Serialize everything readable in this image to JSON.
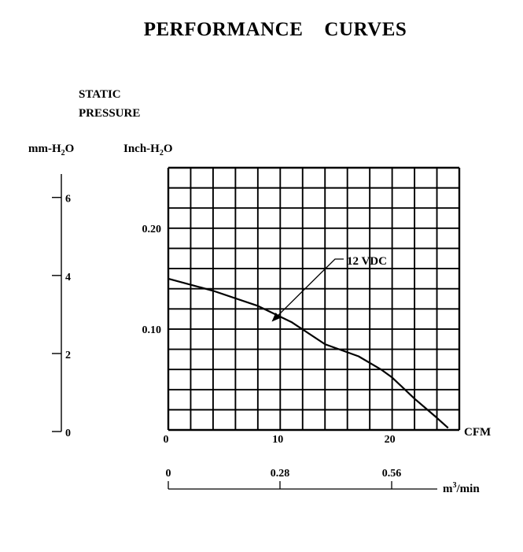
{
  "chart_data": {
    "type": "line",
    "title": "PERFORMANCE    CURVES",
    "ylabel_line1": "STATIC",
    "ylabel_line2": "PRESSURE",
    "y_unit_left": "mm-H",
    "y_unit_left_sub": "2",
    "y_unit_left_tail": "O",
    "y_unit_right": "Inch-H",
    "y_unit_right_sub": "2",
    "y_unit_right_tail": "O",
    "x_unit": "CFM",
    "x2_unit": "m",
    "x2_unit_sup": "3",
    "x2_unit_tail": "/min",
    "xlim": [
      0,
      26
    ],
    "ylim_inch": [
      0,
      0.26
    ],
    "ylim_mm": [
      0,
      6.6
    ],
    "x_ticks": [
      {
        "value": 0,
        "label": "0"
      },
      {
        "value": 10,
        "label": "10"
      },
      {
        "value": 20,
        "label": "20"
      }
    ],
    "y_inch_ticks": [
      {
        "value": 0.1,
        "label": "0.10"
      },
      {
        "value": 0.2,
        "label": "0.20"
      }
    ],
    "y_mm_ticks": [
      {
        "value": 0,
        "label": "0"
      },
      {
        "value": 2,
        "label": "2"
      },
      {
        "value": 4,
        "label": "4"
      },
      {
        "value": 6,
        "label": "6"
      }
    ],
    "x2_ticks": [
      {
        "value": 0,
        "label": "0"
      },
      {
        "value": 0.28,
        "label": "0.28"
      },
      {
        "value": 0.56,
        "label": "0.56"
      }
    ],
    "grid_cols": 13,
    "grid_rows": 13,
    "series": [
      {
        "name": "12 VDC",
        "x": [
          0,
          4,
          8,
          11,
          14,
          17,
          19,
          20,
          22,
          24,
          25
        ],
        "y": [
          0.15,
          0.138,
          0.123,
          0.107,
          0.085,
          0.073,
          0.06,
          0.052,
          0.031,
          0.012,
          0.002
        ]
      }
    ],
    "annotation": {
      "text": "12 VDC",
      "series": "12 VDC",
      "x": 9.3,
      "y": 0.108
    }
  }
}
